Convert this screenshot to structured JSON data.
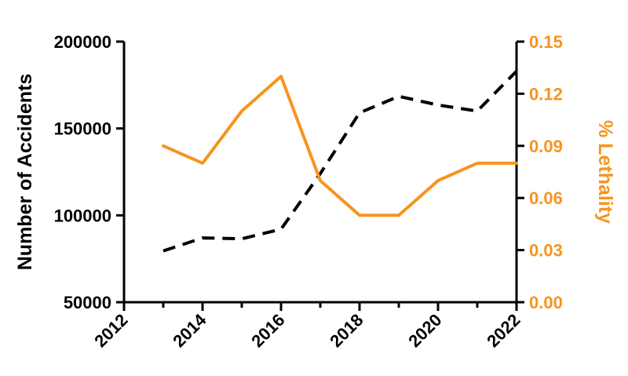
{
  "chart_data": {
    "type": "line",
    "x": [
      2013,
      2014,
      2015,
      2016,
      2017,
      2018,
      2019,
      2020,
      2021,
      2022
    ],
    "series": [
      {
        "axis": "left",
        "style": "dashed",
        "color": "#000000",
        "values": [
          79500,
          87000,
          86500,
          92000,
          124000,
          159000,
          168500,
          163500,
          160000,
          183000
        ]
      },
      {
        "axis": "right",
        "style": "solid",
        "color": "#f7941d",
        "values": [
          0.09,
          0.08,
          0.11,
          0.13,
          0.07,
          0.05,
          0.05,
          0.07,
          0.08,
          0.08
        ]
      }
    ],
    "xlim": [
      2012,
      2022
    ],
    "xticks": [
      "2012",
      "2014",
      "2016",
      "2018",
      "2020",
      "2022"
    ],
    "ylabel_left": "Number of Accidents",
    "ylim_left": [
      50000,
      200000
    ],
    "yticks_left": [
      "50000",
      "100000",
      "150000",
      "200000"
    ],
    "ylabel_right": "% Lethality",
    "ylim_right": [
      0,
      0.15
    ],
    "yticks_right": [
      "0.00",
      "0.03",
      "0.06",
      "0.09",
      "0.12",
      "0.15"
    ],
    "grid": false,
    "colors": {
      "left_axis": "#000000",
      "right_axis": "#f7941d"
    }
  }
}
